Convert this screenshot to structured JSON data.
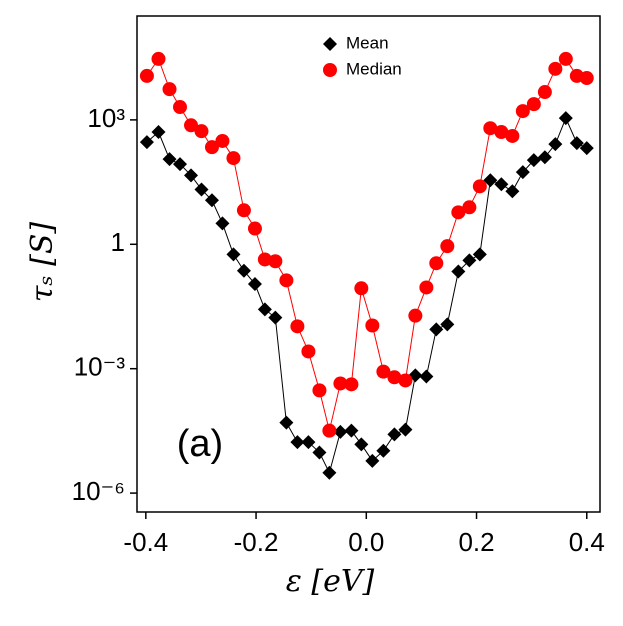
{
  "chart_data": {
    "type": "line",
    "xlabel": "ε [eV]",
    "ylabel": "τₛ [S]",
    "annotation": "(a)",
    "yscale": "log",
    "legend": "top-center",
    "x": [
      -0.398,
      -0.377,
      -0.357,
      -0.338,
      -0.318,
      -0.299,
      -0.28,
      -0.261,
      -0.241,
      -0.222,
      -0.202,
      -0.184,
      -0.165,
      -0.145,
      -0.125,
      -0.105,
      -0.085,
      -0.067,
      -0.047,
      -0.027,
      -0.009,
      0.011,
      0.031,
      0.051,
      0.071,
      0.089,
      0.109,
      0.127,
      0.147,
      0.167,
      0.187,
      0.206,
      0.225,
      0.245,
      0.265,
      0.284,
      0.304,
      0.324,
      0.343,
      0.362,
      0.382,
      0.4
    ],
    "series": [
      {
        "name": "Mean",
        "color": "#000000",
        "marker": "diamond",
        "values": [
          290,
          510,
          113,
          86,
          46,
          21,
          11.5,
          3.2,
          0.57,
          0.23,
          0.11,
          0.027,
          0.017,
          5e-05,
          1.7e-05,
          1.7e-05,
          9.5e-06,
          3.1e-06,
          3e-05,
          3.2e-05,
          1.5e-05,
          6e-06,
          1.05e-05,
          2.6e-05,
          3.4e-05,
          0.00069,
          0.00065,
          0.0089,
          0.0117,
          0.22,
          0.41,
          0.57,
          35,
          28,
          19,
          55,
          107,
          126,
          260,
          1100,
          275,
          209
        ]
      },
      {
        "name": "Median",
        "color": "#ff0000",
        "marker": "circle",
        "values": [
          11500,
          29500,
          5500,
          2040,
          740,
          535,
          220,
          310,
          120,
          6.6,
          2.4,
          0.43,
          0.39,
          0.135,
          0.0105,
          0.0026,
          0.0003,
          3.2e-05,
          0.00044,
          0.00042,
          0.087,
          0.011,
          0.00085,
          0.00062,
          0.00052,
          0.019,
          0.091,
          0.35,
          0.9,
          5.9,
          7.8,
          25,
          630,
          510,
          410,
          1630,
          2400,
          4700,
          17000,
          29500,
          11500,
          10200
        ]
      }
    ],
    "xlim": [
      -0.416,
      0.424
    ],
    "xticks": [
      -0.4,
      -0.2,
      {
        "value": 0,
        "label": "0.0"
      },
      0.2,
      0.4
    ],
    "ylim": [
      3.5e-07,
      320000
    ],
    "yticks": [
      {
        "value": 1e-06,
        "label": "10⁻⁶"
      },
      {
        "value": 0.001,
        "label": "10⁻³"
      },
      1,
      {
        "value": 1000,
        "label": "10³"
      }
    ]
  }
}
